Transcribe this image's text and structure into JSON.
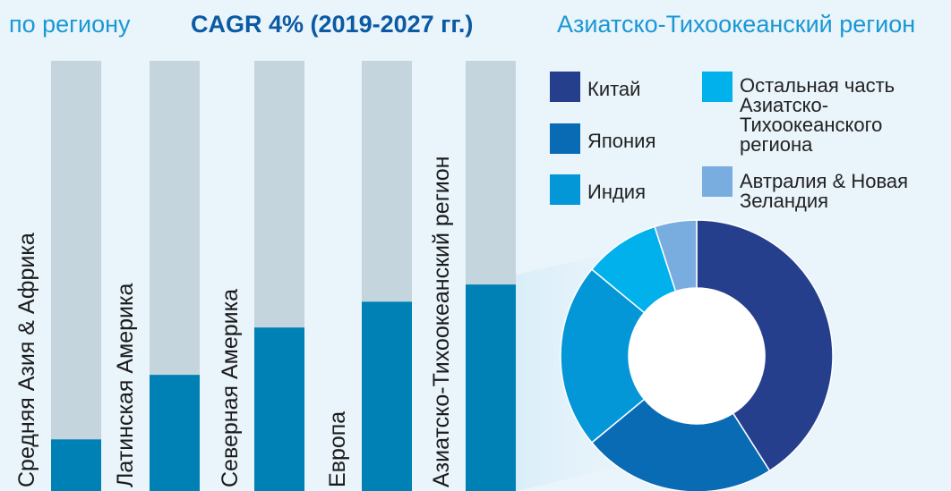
{
  "header": {
    "subtitle_left": "по региону",
    "cagr_label": "CAGR 4% (2019-2027 гг.)",
    "donut_title": "Азиатско-Тихоокеанский регион"
  },
  "colors": {
    "background": "#e9f4fb",
    "bar_track": "#c5d5de",
    "bar_fill": "#0081b6",
    "connector": "#d2eaf7"
  },
  "chart_data": [
    {
      "type": "bar",
      "title": "CAGR 4% (2019-2027 гг.)",
      "categories": [
        "Средняя Азия & Африка",
        "Латинская Америка",
        "Северная Америка",
        "Европа",
        "Азиатско-Тихоокеанский регион"
      ],
      "values": [
        12,
        27,
        38,
        44,
        48
      ],
      "ylim": [
        0,
        100
      ],
      "orientation": "vertical",
      "category_labels": "rotated, inside bars",
      "axes_visible": false
    },
    {
      "type": "pie",
      "variant": "donut",
      "title": "Азиатско-Тихоокеанский регион",
      "labels": [
        "Китай",
        "Япония",
        "Индия",
        "Остальная часть Азиатско-Тихоокеанского региона",
        "Автралия & Новая Зеландия"
      ],
      "values": [
        41,
        23,
        22,
        9,
        5
      ],
      "colors": [
        "#253f8c",
        "#0a6bb5",
        "#0397d8",
        "#00b1ec",
        "#79ade0"
      ],
      "legend_position": "top"
    }
  ]
}
